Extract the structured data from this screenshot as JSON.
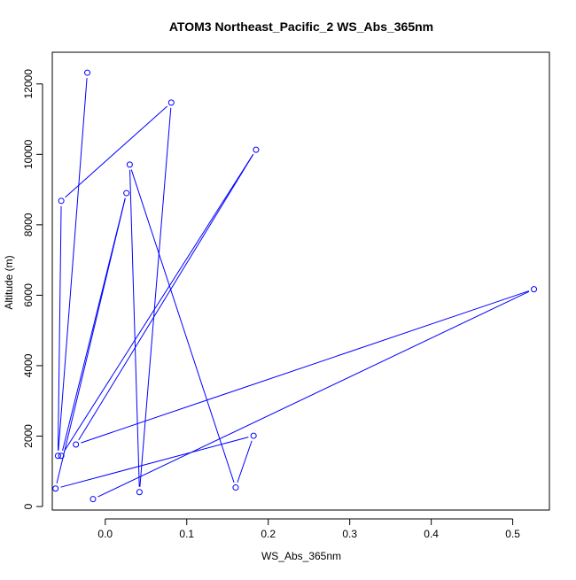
{
  "colors": {
    "series": "#0000ff",
    "axis": "#000000",
    "background": "#ffffff"
  },
  "chart_data": {
    "type": "line",
    "markers": "open-circle",
    "title": "ATOM3 Northeast_Pacific_2 WS_Abs_365nm",
    "xlabel": "WS_Abs_365nm",
    "ylabel": "Altitude (m)",
    "xlim": [
      -0.065,
      0.545
    ],
    "ylim": [
      -100,
      12900
    ],
    "grid": false,
    "legend": "none",
    "xticks": [
      0,
      0.1,
      0.2,
      0.3,
      0.4,
      0.5
    ],
    "xtick_labels": [
      "0.0",
      "0.1",
      "0.2",
      "0.3",
      "0.4",
      "0.5"
    ],
    "yticks": [
      0,
      2000,
      4000,
      6000,
      8000,
      10000,
      12000
    ],
    "ytick_labels": [
      "0",
      "2000",
      "4000",
      "6000",
      "8000",
      "10000",
      "12000"
    ],
    "series": [
      {
        "x": [
          -0.022,
          -0.058,
          -0.054,
          0.081,
          0.042,
          0.03,
          0.16,
          0.182,
          -0.061,
          0.026,
          -0.054,
          0.185,
          -0.036,
          0.526,
          -0.015
        ],
        "y": [
          12320,
          1440,
          8680,
          11470,
          410,
          9710,
          540,
          2010,
          510,
          8900,
          1440,
          10130,
          1760,
          6170,
          210
        ]
      }
    ]
  }
}
